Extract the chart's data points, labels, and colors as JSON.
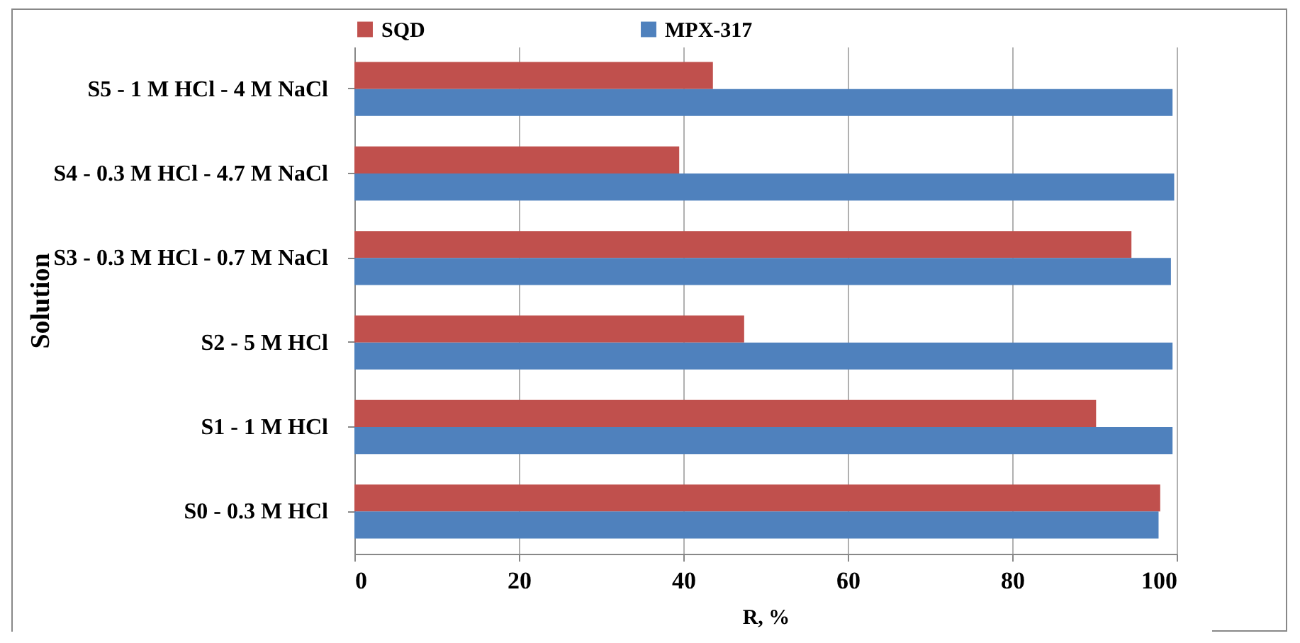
{
  "chart_data": {
    "type": "bar",
    "orientation": "horizontal",
    "xlabel": "R, %",
    "ylabel": "Solution",
    "categories": [
      "S5 - 1 M HCl - 4 M NaCl",
      "S4 - 0.3 M HCl - 4.7 M NaCl",
      "S3 - 0.3 M HCl - 0.7 M NaCl",
      "S2 - 5 M HCl",
      "S1 - 1 M HCl",
      "S0 - 0.3 M HCl"
    ],
    "series": [
      {
        "name": "SQD",
        "color": "#c0504d",
        "values": [
          43.6,
          39.5,
          94.5,
          47.4,
          90.2,
          98.0
        ]
      },
      {
        "name": "MPX-317",
        "color": "#4f81bd",
        "values": [
          99.5,
          99.7,
          99.3,
          99.5,
          99.5,
          97.8
        ]
      }
    ],
    "xlim": [
      0,
      100
    ],
    "xticks": [
      0,
      20,
      40,
      60,
      80,
      100
    ],
    "grid": "x",
    "legend": "top"
  }
}
